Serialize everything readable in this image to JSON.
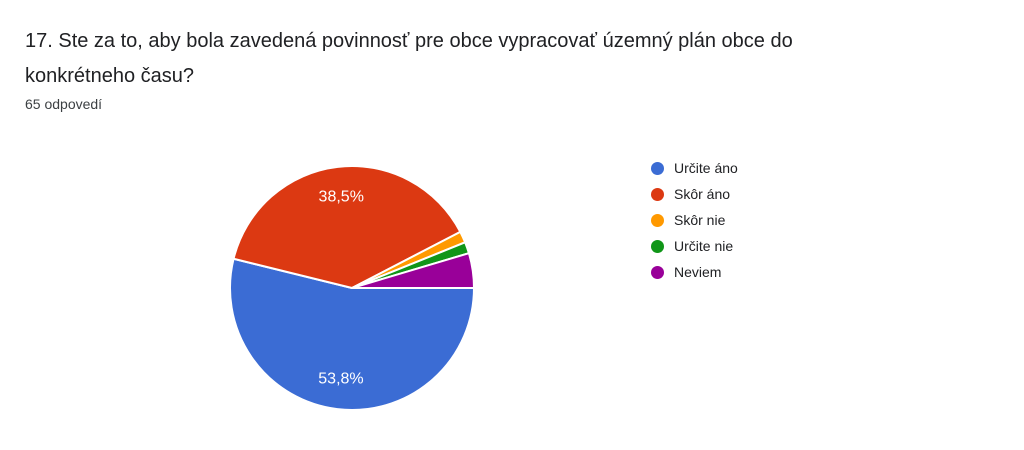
{
  "header": {
    "question_title": "17. Ste za to, aby bola zavedená povinnosť pre obce vypracovať územný plán obce do konkrétneho času?",
    "responses_count": "65 odpovedí"
  },
  "chart_data": {
    "type": "pie",
    "title": "17. Ste za to, aby bola zavedená povinnosť pre obce vypracovať územný plán obce do konkrétneho času?",
    "subtitle": "65 odpovedí",
    "total_responses": 65,
    "legend_position": "right",
    "start_angle_deg": 90,
    "direction": "clockwise",
    "label_color": "#ffffff",
    "separator_color": "#ffffff",
    "slices": [
      {
        "label": "Určite áno",
        "percent": 53.8,
        "display_percent": "53,8%",
        "color": "#3B6CD4"
      },
      {
        "label": "Skôr áno",
        "percent": 38.5,
        "display_percent": "38,5%",
        "color": "#DC3912"
      },
      {
        "label": "Skôr nie",
        "percent": 1.5,
        "display_percent": "",
        "color": "#FF9900"
      },
      {
        "label": "Určite nie",
        "percent": 1.5,
        "display_percent": "",
        "color": "#109618"
      },
      {
        "label": "Neviem",
        "percent": 4.6,
        "display_percent": "",
        "color": "#990099"
      }
    ]
  }
}
